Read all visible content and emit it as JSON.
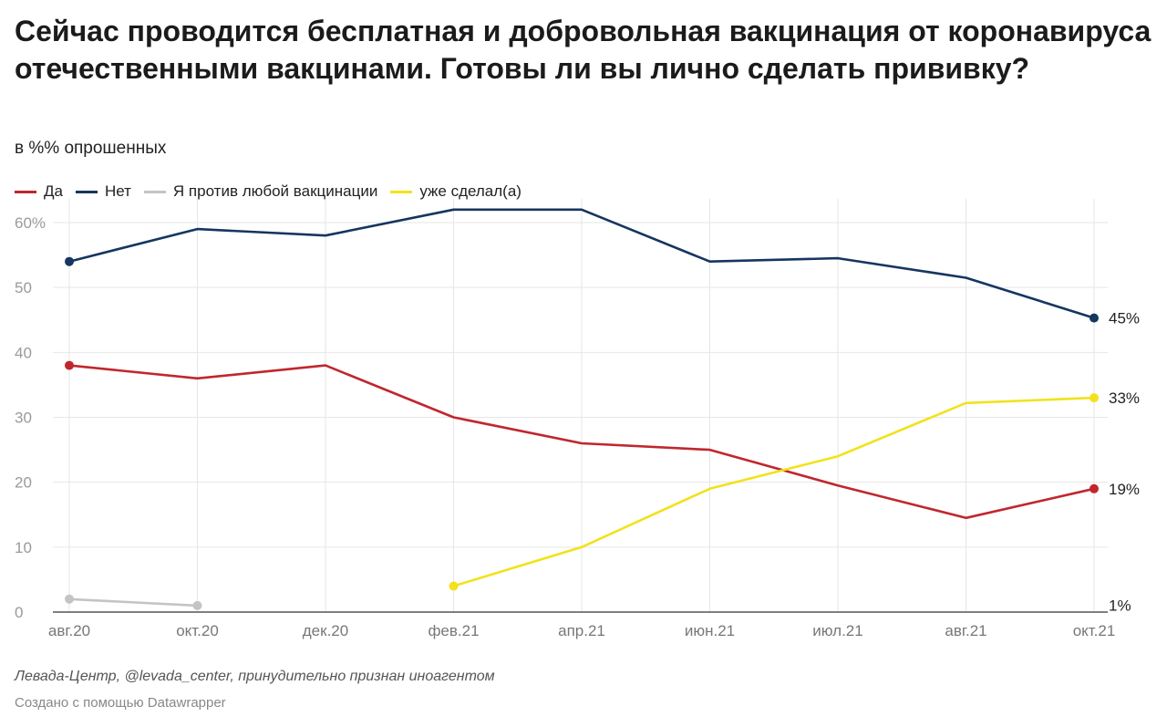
{
  "title": "Сейчас проводится бесплатная и добровольная вакцинация от коронавируса отечественными вакцинами. Готовы ли вы лично сделать прививку?",
  "subtitle": "в %% опрошенных",
  "source": "Левада-Центр, @levada_center, принудительно признан иноагентом",
  "credit": "Создано с помощью Datawrapper",
  "chart_data": {
    "type": "line",
    "title": "Сейчас проводится бесплатная и добровольная вакцинация от коронавируса отечественными вакцинами. Готовы ли вы лично сделать прививку?",
    "xlabel": "",
    "ylabel": "в %% опрошенных",
    "categories": [
      "авг.20",
      "окт.20",
      "дек.20",
      "фев.21",
      "апр.21",
      "июн.21",
      "июл.21",
      "авг.21",
      "окт.21"
    ],
    "ylim": [
      0,
      62
    ],
    "yticks": [
      {
        "value": 0,
        "label": "0"
      },
      {
        "value": 10,
        "label": "10"
      },
      {
        "value": 20,
        "label": "20"
      },
      {
        "value": 30,
        "label": "30"
      },
      {
        "value": 40,
        "label": "40"
      },
      {
        "value": 50,
        "label": "50"
      },
      {
        "value": 60,
        "label": "60%"
      }
    ],
    "grid": true,
    "legend_position": "top-left",
    "series": [
      {
        "name": "Да",
        "color": "#c0272d",
        "values": [
          38,
          36,
          38,
          30,
          26,
          25,
          19.5,
          14.5,
          19
        ],
        "end_label": "19%",
        "endpoints": true
      },
      {
        "name": "Нет",
        "color": "#15365f",
        "values": [
          54,
          59,
          58,
          62,
          62,
          54,
          54.5,
          51.5,
          45.3
        ],
        "end_label": "45%",
        "endpoints": true
      },
      {
        "name": "Я против любой вакцинации",
        "color": "#c4c4c4",
        "values": [
          2,
          1,
          null,
          null,
          null,
          null,
          null,
          null,
          null
        ],
        "end_label": "",
        "endpoints": true
      },
      {
        "name": "уже сделал(а)",
        "color": "#f2e21b",
        "values": [
          null,
          null,
          null,
          4,
          10,
          19,
          24,
          32.2,
          33
        ],
        "end_label": "33%",
        "endpoints": true
      }
    ],
    "extra_labels": [
      {
        "text": "1%",
        "value": 0.5
      }
    ]
  }
}
